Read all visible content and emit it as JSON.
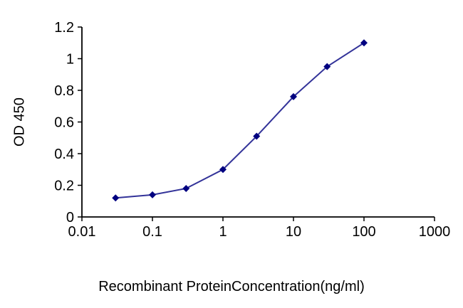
{
  "chart_data": {
    "type": "line",
    "title": "",
    "xlabel": "Recombinant ProteinConcentration(ng/ml)",
    "ylabel": "OD 450",
    "x_scale": "log",
    "xlim": [
      0.01,
      1000
    ],
    "ylim": [
      0,
      1.2
    ],
    "x_tick_labels": [
      "0.01",
      "0.1",
      "1",
      "10",
      "100",
      "1000"
    ],
    "y_tick_labels": [
      "0",
      "0.2",
      "0.4",
      "0.6",
      "0.8",
      "1",
      "1.2"
    ],
    "grid": false,
    "legend": false,
    "series": [
      {
        "marker": "diamond",
        "x": [
          0.03,
          0.1,
          0.3,
          1,
          3,
          10,
          30,
          100
        ],
        "y": [
          0.12,
          0.14,
          0.18,
          0.3,
          0.51,
          0.76,
          0.95,
          1.1
        ],
        "line_color": "#333399",
        "marker_color": "#000080"
      }
    ],
    "axis_color": "#000000",
    "background": "#ffffff"
  }
}
